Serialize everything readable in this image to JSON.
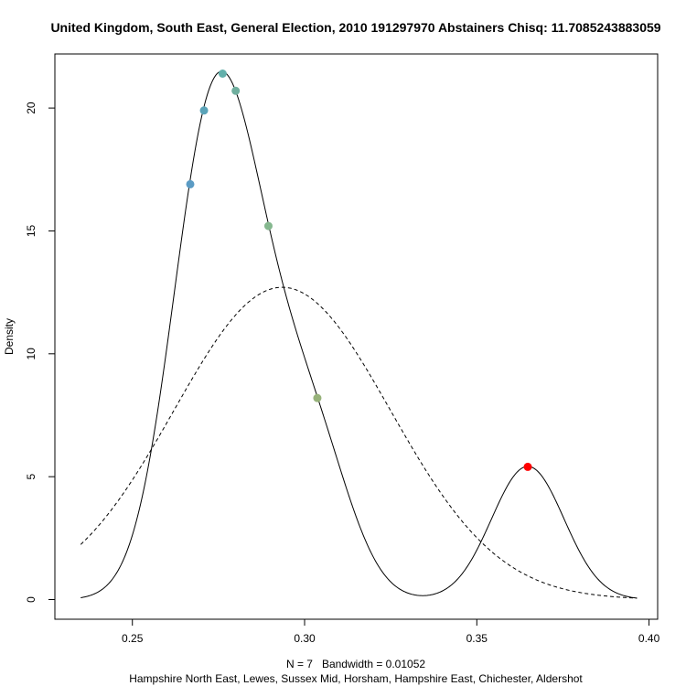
{
  "chart_data": {
    "type": "line",
    "title": "United Kingdom, South East, General Election, 2010 191297970 Abstainers Chisq: 11.7085243883059",
    "xlabel": "N = 7   Bandwidth = 0.01052",
    "sublabel": "Hampshire North East, Lewes, Sussex Mid, Horsham, Hampshire East, Chichester, Aldershot",
    "ylabel": "Density",
    "xlim": [
      0.2275,
      0.4025
    ],
    "ylim": [
      -0.8,
      22.2
    ],
    "x_ticks": [
      0.25,
      0.3,
      0.35,
      0.4
    ],
    "x_tick_labels": [
      "0.25",
      "0.30",
      "0.35",
      "0.40"
    ],
    "y_ticks": [
      0,
      5,
      10,
      15,
      20
    ],
    "y_tick_labels": [
      "0",
      "5",
      "10",
      "15",
      "20"
    ],
    "grid": false,
    "kde": {
      "bandwidth": 0.01052,
      "domain": [
        0.235,
        0.3965
      ],
      "observations": [
        0.2668,
        0.2708,
        0.2762,
        0.28,
        0.2895,
        0.3037,
        0.3648
      ]
    },
    "normal": {
      "mean": 0.2935,
      "sd": 0.0314,
      "domain": [
        0.235,
        0.3965
      ]
    },
    "points": [
      {
        "x": 0.2668,
        "y": 16.9,
        "color": "#5b9bc4"
      },
      {
        "x": 0.2708,
        "y": 19.9,
        "color": "#5aa3b8"
      },
      {
        "x": 0.2762,
        "y": 21.4,
        "color": "#63b0ab"
      },
      {
        "x": 0.28,
        "y": 20.7,
        "color": "#6fae9e"
      },
      {
        "x": 0.2895,
        "y": 15.2,
        "color": "#85b88f"
      },
      {
        "x": 0.3037,
        "y": 8.2,
        "color": "#97b27a"
      },
      {
        "x": 0.3648,
        "y": 5.4,
        "color": "#ff0000"
      }
    ]
  }
}
